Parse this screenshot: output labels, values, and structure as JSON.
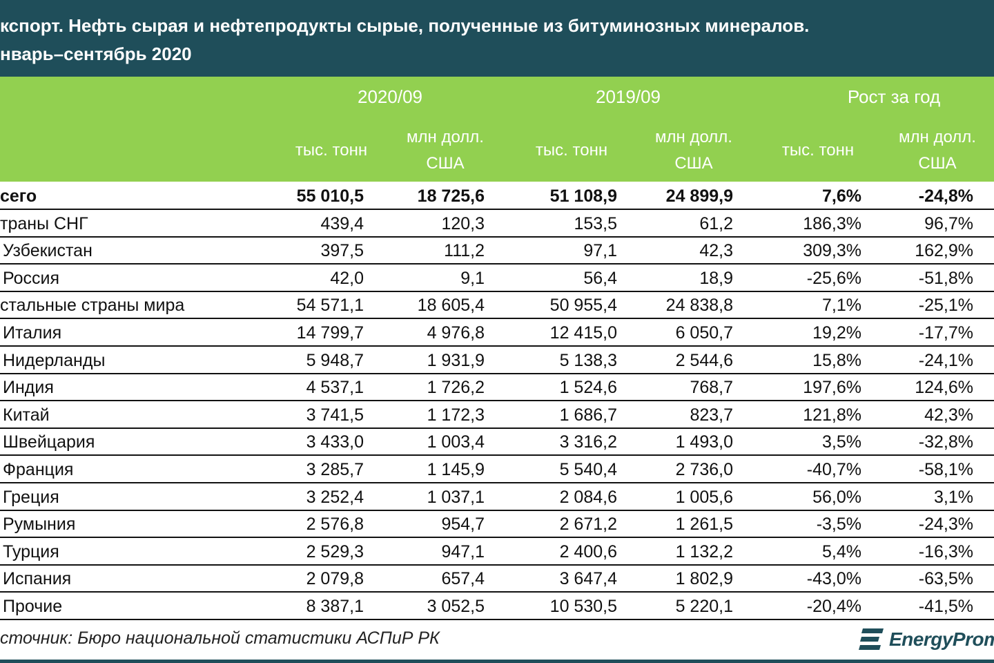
{
  "title": {
    "line1": "кспорт. Нефть сырая и нефтепродукты сырые, полученные из битуминозных минералов.",
    "line2": "нварь–сентябрь 2020"
  },
  "header": {
    "group_2020": "2020/09",
    "group_2019": "2019/09",
    "group_growth": "Рост за год",
    "sub_tons": "тыс. тонн",
    "sub_usd_line1": "млн долл.",
    "sub_usd_line2": "США"
  },
  "source": "сточник: Бюро национальной статистики АСПиР РК",
  "logo_text": "EnergyProm",
  "colors": {
    "title_bg": "#1f4e5a",
    "header_bg": "#92d050"
  },
  "chart_data": {
    "type": "table",
    "columns": [
      "",
      "2020/09 тыс. тонн",
      "2020/09 млн долл. США",
      "2019/09 тыс. тонн",
      "2019/09 млн долл. США",
      "Рост за год тыс. тонн",
      "Рост за год млн долл. США"
    ],
    "rows": [
      {
        "name": "сего",
        "bold": true,
        "values": [
          "55 010,5",
          "18 725,6",
          "51 108,9",
          "24 899,9",
          "7,6%",
          "-24,8%"
        ]
      },
      {
        "name": "траны СНГ",
        "values": [
          "439,4",
          "120,3",
          "153,5",
          "61,2",
          "186,3%",
          "96,7%"
        ]
      },
      {
        "name": "Узбекистан",
        "indent": true,
        "values": [
          "397,5",
          "111,2",
          "97,1",
          "42,3",
          "309,3%",
          "162,9%"
        ]
      },
      {
        "name": "Россия",
        "indent": true,
        "values": [
          "42,0",
          "9,1",
          "56,4",
          "18,9",
          "-25,6%",
          "-51,8%"
        ]
      },
      {
        "name": "стальные страны мира",
        "values": [
          "54 571,1",
          "18 605,4",
          "50 955,4",
          "24 838,8",
          "7,1%",
          "-25,1%"
        ]
      },
      {
        "name": "Италия",
        "indent": true,
        "values": [
          "14 799,7",
          "4 976,8",
          "12 415,0",
          "6 050,7",
          "19,2%",
          "-17,7%"
        ]
      },
      {
        "name": "Нидерланды",
        "indent": true,
        "values": [
          "5 948,7",
          "1 931,9",
          "5 138,3",
          "2 544,6",
          "15,8%",
          "-24,1%"
        ]
      },
      {
        "name": "Индия",
        "indent": true,
        "values": [
          "4 537,1",
          "1 726,2",
          "1 524,6",
          "768,7",
          "197,6%",
          "124,6%"
        ]
      },
      {
        "name": "Китай",
        "indent": true,
        "values": [
          "3 741,5",
          "1 172,3",
          "1 686,7",
          "823,7",
          "121,8%",
          "42,3%"
        ]
      },
      {
        "name": "Швейцария",
        "indent": true,
        "values": [
          "3 433,0",
          "1 003,4",
          "3 316,2",
          "1 493,0",
          "3,5%",
          "-32,8%"
        ]
      },
      {
        "name": "Франция",
        "indent": true,
        "values": [
          "3 285,7",
          "1 145,9",
          "5 540,4",
          "2 736,0",
          "-40,7%",
          "-58,1%"
        ]
      },
      {
        "name": "Греция",
        "indent": true,
        "values": [
          "3 252,4",
          "1 037,1",
          "2 084,6",
          "1 005,6",
          "56,0%",
          "3,1%"
        ]
      },
      {
        "name": "Румыния",
        "indent": true,
        "values": [
          "2 576,8",
          "954,7",
          "2 671,2",
          "1 261,5",
          "-3,5%",
          "-24,3%"
        ]
      },
      {
        "name": "Турция",
        "indent": true,
        "values": [
          "2 529,3",
          "947,1",
          "2 400,6",
          "1 132,2",
          "5,4%",
          "-16,3%"
        ]
      },
      {
        "name": "Испания",
        "indent": true,
        "values": [
          "2 079,8",
          "657,4",
          "3 647,4",
          "1 802,9",
          "-43,0%",
          "-63,5%"
        ]
      },
      {
        "name": "Прочие",
        "indent": true,
        "values": [
          "8 387,1",
          "3 052,5",
          "10 530,5",
          "5 220,1",
          "-20,4%",
          "-41,5%"
        ]
      }
    ]
  }
}
